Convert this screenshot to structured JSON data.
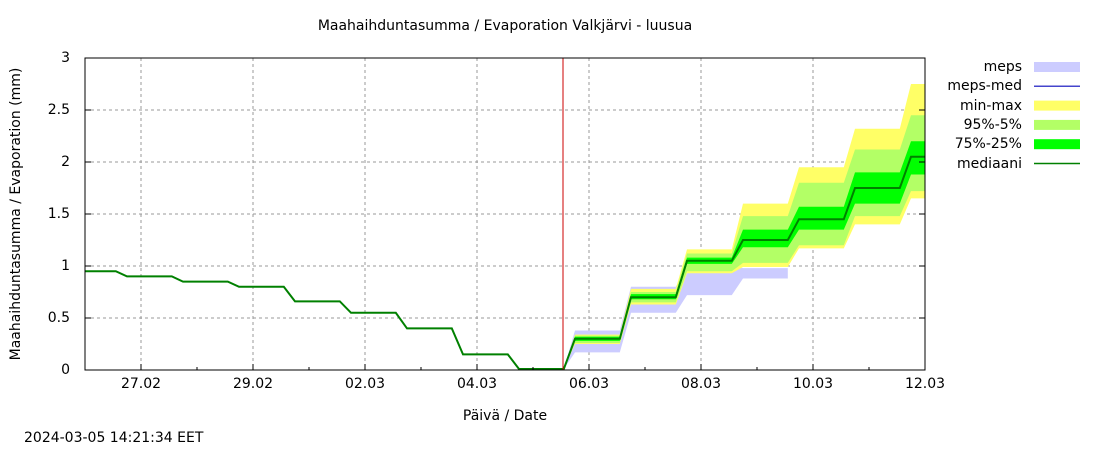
{
  "chart_data": {
    "type": "area",
    "title": "Maahaihduntasumma / Evaporation   Valkjärvi - luusua",
    "xlabel": "Päivä / Date",
    "ylabel": "Maahaihduntasumma / Evaporation (mm)",
    "ylim": [
      0,
      3
    ],
    "y_ticks": [
      "0",
      "0.5",
      "1",
      "1.5",
      "2",
      "2.5",
      "3"
    ],
    "x_ticks": [
      "27.02",
      "29.02",
      "02.03",
      "04.03",
      "06.03",
      "08.03",
      "10.03",
      "12.03"
    ],
    "x_range_days": [
      "26.02",
      "12.03"
    ],
    "grid": true,
    "legend_position": "right",
    "forecast_start_marker": "05.03 ~14:00",
    "x_days": [
      0,
      0.55,
      0.75,
      1.55,
      1.75,
      2.55,
      2.75,
      3.55,
      3.75,
      4.55,
      4.75,
      5.55,
      5.75,
      6.55,
      6.75,
      7.55,
      7.75,
      8.55,
      8.75,
      9.55,
      9.75,
      10.55,
      10.75,
      11.55,
      11.75,
      12.55,
      12.75,
      13.55,
      13.75,
      14.55,
      14.75,
      15
    ],
    "series": [
      {
        "name": "mediaani",
        "color": "#008000",
        "values": [
          0.95,
          0.95,
          0.9,
          0.9,
          0.85,
          0.85,
          0.8,
          0.8,
          0.66,
          0.66,
          0.55,
          0.55,
          0.4,
          0.4,
          0.15,
          0.15,
          0.01,
          0.01,
          0.3,
          0.3,
          0.7,
          0.7,
          1.05,
          1.05,
          1.25,
          1.25,
          1.45,
          1.45,
          1.75,
          1.75,
          2.05,
          2.05
        ]
      },
      {
        "name": "75%-25%",
        "color": "#00ff00",
        "upper": [
          null,
          null,
          null,
          null,
          null,
          null,
          null,
          null,
          null,
          null,
          null,
          null,
          null,
          null,
          null,
          null,
          0.01,
          0.01,
          0.32,
          0.32,
          0.73,
          0.73,
          1.08,
          1.08,
          1.35,
          1.35,
          1.57,
          1.57,
          1.9,
          1.9,
          2.2,
          2.2
        ],
        "lower": [
          null,
          null,
          null,
          null,
          null,
          null,
          null,
          null,
          null,
          null,
          null,
          null,
          null,
          null,
          null,
          null,
          0.01,
          0.01,
          0.28,
          0.28,
          0.68,
          0.68,
          1.02,
          1.02,
          1.18,
          1.18,
          1.35,
          1.35,
          1.6,
          1.6,
          1.88,
          1.88
        ]
      },
      {
        "name": "95%-5%",
        "color": "#b3ff66",
        "upper": [
          null,
          null,
          null,
          null,
          null,
          null,
          null,
          null,
          null,
          null,
          null,
          null,
          null,
          null,
          null,
          null,
          0.01,
          0.01,
          0.33,
          0.33,
          0.75,
          0.75,
          1.12,
          1.12,
          1.48,
          1.48,
          1.8,
          1.8,
          2.12,
          2.12,
          2.45,
          2.45
        ],
        "lower": [
          null,
          null,
          null,
          null,
          null,
          null,
          null,
          null,
          null,
          null,
          null,
          null,
          null,
          null,
          null,
          null,
          0.01,
          0.01,
          0.26,
          0.26,
          0.65,
          0.65,
          0.95,
          0.95,
          1.03,
          1.03,
          1.2,
          1.2,
          1.48,
          1.48,
          1.72,
          1.72
        ]
      },
      {
        "name": "min-max",
        "color": "#ffff66",
        "upper": [
          null,
          null,
          null,
          null,
          null,
          null,
          null,
          null,
          null,
          null,
          null,
          null,
          null,
          null,
          null,
          null,
          0.01,
          0.01,
          0.34,
          0.34,
          0.78,
          0.78,
          1.16,
          1.16,
          1.6,
          1.6,
          1.95,
          1.95,
          2.32,
          2.32,
          2.75,
          2.75
        ],
        "lower": [
          null,
          null,
          null,
          null,
          null,
          null,
          null,
          null,
          null,
          null,
          null,
          null,
          null,
          null,
          null,
          null,
          0.01,
          0.01,
          0.25,
          0.25,
          0.63,
          0.63,
          0.93,
          0.93,
          0.99,
          0.99,
          1.17,
          1.17,
          1.4,
          1.4,
          1.65,
          1.65
        ]
      },
      {
        "name": "meps",
        "color": "#ccccff",
        "upper": [
          null,
          null,
          null,
          null,
          null,
          null,
          null,
          null,
          null,
          null,
          null,
          null,
          null,
          null,
          null,
          null,
          0.01,
          0.01,
          0.38,
          0.38,
          0.8,
          0.8,
          1.0,
          1.0,
          0.98,
          0.98,
          null,
          null,
          null,
          null,
          null,
          null
        ],
        "lower": [
          null,
          null,
          null,
          null,
          null,
          null,
          null,
          null,
          null,
          null,
          null,
          null,
          null,
          null,
          null,
          null,
          0.01,
          0.01,
          0.17,
          0.17,
          0.55,
          0.55,
          0.72,
          0.72,
          0.88,
          0.88,
          null,
          null,
          null,
          null,
          null,
          null
        ]
      },
      {
        "name": "meps-med",
        "color": "#4444cc",
        "values": []
      }
    ]
  },
  "legend": [
    {
      "label": "meps",
      "color": "#ccccff",
      "kind": "band"
    },
    {
      "label": "meps-med",
      "color": "#4444cc",
      "kind": "line"
    },
    {
      "label": "min-max",
      "color": "#ffff66",
      "kind": "band"
    },
    {
      "label": "95%-5%",
      "color": "#b3ff66",
      "kind": "band"
    },
    {
      "label": "75%-25%",
      "color": "#00ff00",
      "kind": "band"
    },
    {
      "label": "mediaani",
      "color": "#008000",
      "kind": "line"
    }
  ],
  "timestamp": "2024-03-05 14:21:34 EET"
}
